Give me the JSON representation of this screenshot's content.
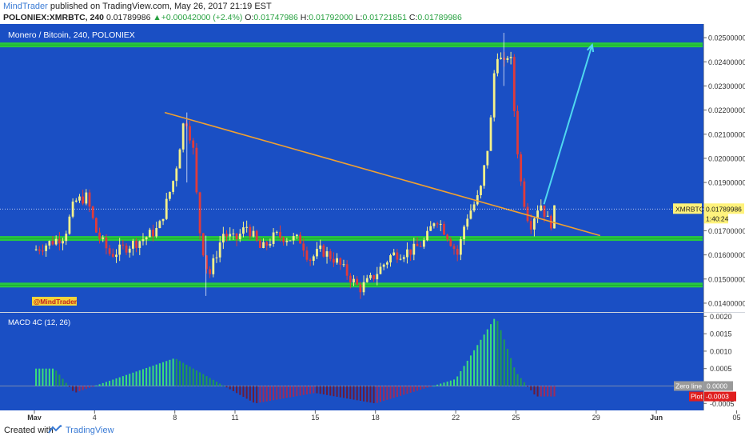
{
  "header": {
    "author": "MindTrader",
    "published_text": "published on TradingView.com, May 26, 2017 21:19 EST",
    "symbol": "POLONIEX:XMRBTC, 240",
    "last": "0.01789986",
    "change": "+0.00042000 (+2.4%)",
    "open_label": "O:",
    "open": "0.01747986",
    "high_label": "H:",
    "high": "0.01792000",
    "low_label": "L:",
    "low": "0.01721851",
    "close_label": "C:",
    "close": "0.01789986"
  },
  "footer": {
    "created_with": "Created with",
    "brand": "TradingView"
  },
  "colors": {
    "background": "#1a4fc4",
    "bull": "#f5f18a",
    "bear": "#e03b3b",
    "support": "#27c93f",
    "trendline": "#f0a030",
    "arrow": "#4fd8f0",
    "macd_pos": "#2ecc71",
    "macd_neg": "#c0306a"
  },
  "chart_data": [
    {
      "type": "candlestick",
      "title": "Monero / Bitcoin, 240, POLONIEX",
      "watermark": "@MindTrader",
      "ylim": [
        0.0137,
        0.0255
      ],
      "y_ticks": [
        "0.02500000",
        "0.02400000",
        "0.02300000",
        "0.02200000",
        "0.02100000",
        "0.02000000",
        "0.01900000",
        "0.01700000",
        "0.01600000",
        "0.01500000",
        "0.01400000"
      ],
      "x_ticks": [
        "May",
        "4",
        "8",
        "11",
        "15",
        "18",
        "22",
        "25",
        "29",
        "Jun",
        "05"
      ],
      "last_price_label": "XMRBTC",
      "last_price": "0.01789986",
      "countdown": "1:40:24",
      "key_points": [
        {
          "date": "May 2",
          "close": 0.0183
        },
        {
          "date": "May 4",
          "close": 0.0162
        },
        {
          "date": "May 8",
          "low": 0.0184,
          "high": 0.0219
        },
        {
          "date": "May 9",
          "low": 0.0143,
          "close": 0.015
        },
        {
          "date": "May 11",
          "close": 0.0166
        },
        {
          "date": "May 17",
          "low": 0.0146
        },
        {
          "date": "May 21",
          "close": 0.0176
        },
        {
          "date": "May 22",
          "close": 0.0187
        },
        {
          "date": "May 24",
          "high": 0.0252
        },
        {
          "date": "May 25",
          "close": 0.0185
        },
        {
          "date": "May 26",
          "close": 0.01789986
        }
      ],
      "support_levels": [
        0.01475,
        0.01668,
        0.0247
      ],
      "trendline": {
        "from": {
          "date": "May 8",
          "value": 0.0219
        },
        "to": {
          "date": "May 28",
          "value": 0.0168
        }
      },
      "projection": {
        "from": {
          "date": "May 26",
          "value": 0.0181
        },
        "to": {
          "date": "May 28",
          "value": 0.0247
        }
      }
    },
    {
      "type": "bar",
      "title": "MACD 4C (12, 26)",
      "ylim": [
        -0.0007,
        0.0021
      ],
      "y_ticks": [
        "0.0020",
        "0.0015",
        "0.0010",
        "0.0005",
        "-0.0005"
      ],
      "zero_line_label": "Zero line",
      "zero_line_value": "0.0000",
      "plot_label": "Plot",
      "plot_value": "-0.0003",
      "anchor_values": [
        {
          "date": "May 2",
          "value": 0.0005
        },
        {
          "date": "May 3",
          "value": -0.0002
        },
        {
          "date": "May 8",
          "value": 0.0008
        },
        {
          "date": "May 12",
          "value": -0.0005
        },
        {
          "date": "May 15",
          "value": -0.0002
        },
        {
          "date": "May 18",
          "value": -0.0005
        },
        {
          "date": "May 22",
          "value": 0.0002
        },
        {
          "date": "May 24",
          "value": 0.002
        },
        {
          "date": "May 25",
          "value": 0.0004
        },
        {
          "date": "May 26",
          "value": -0.0003
        }
      ]
    }
  ]
}
